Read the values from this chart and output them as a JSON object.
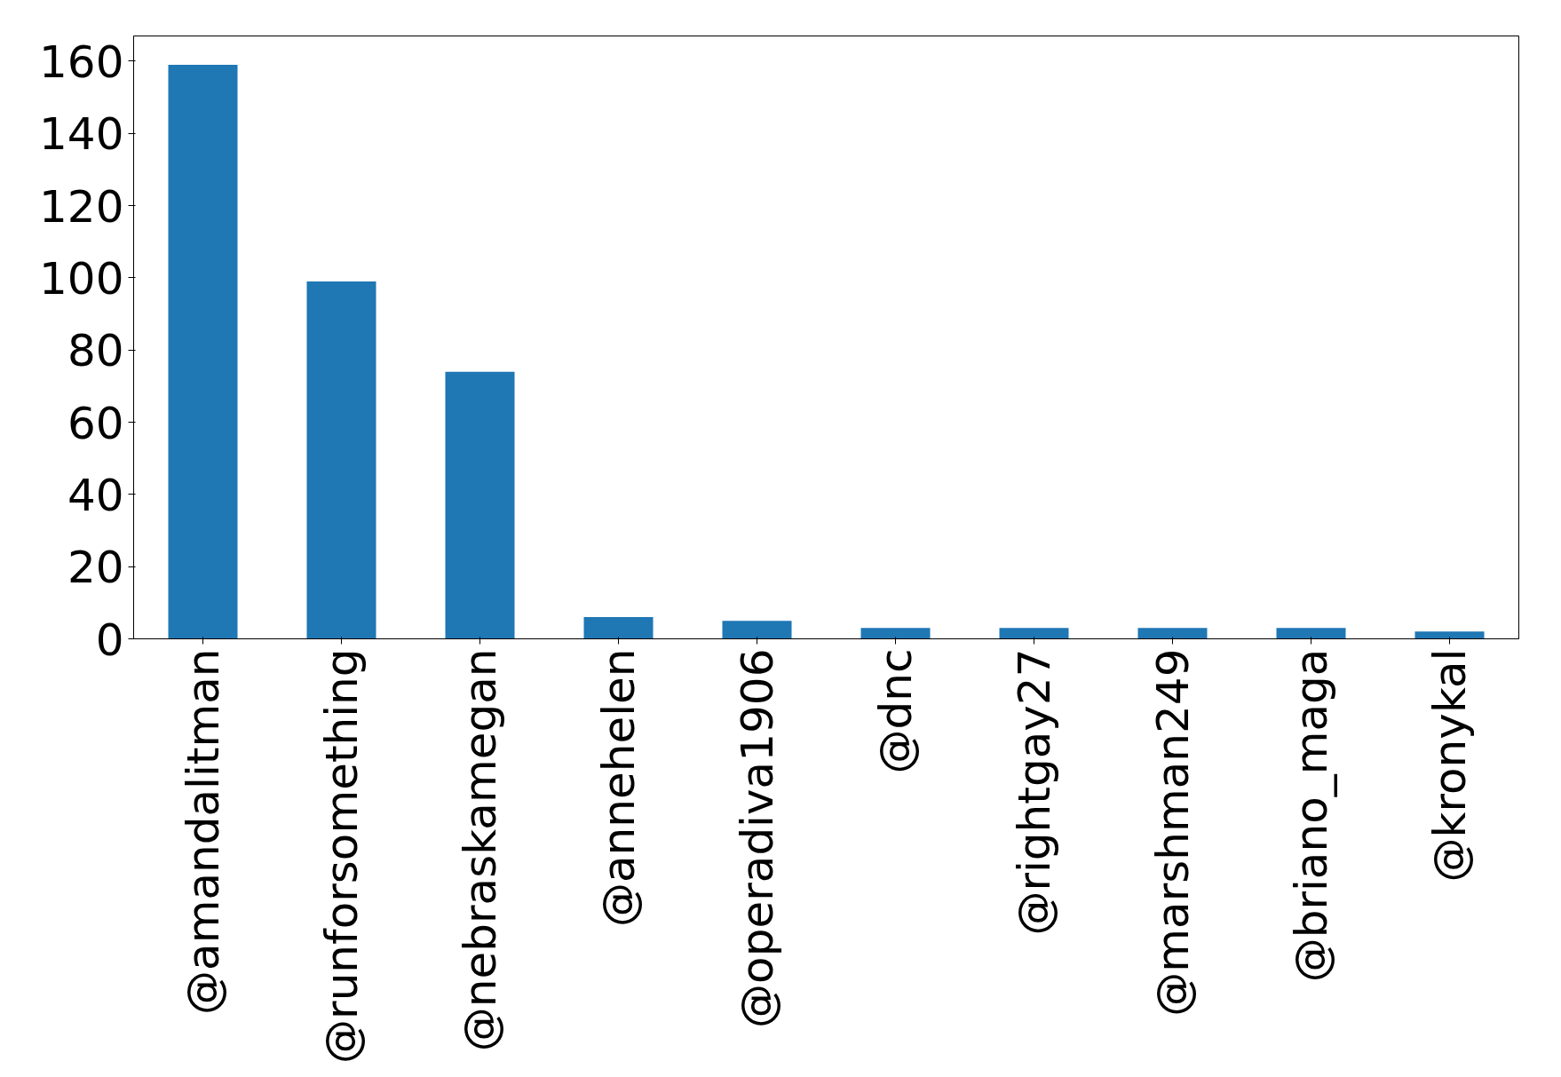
{
  "chart_data": {
    "type": "bar",
    "categories": [
      "@amandalitman",
      "@runforsomething",
      "@nebraskamegan",
      "@annehelen",
      "@operadiva1906",
      "@dnc",
      "@rightgay27",
      "@marshman249",
      "@briano_maga",
      "@kronykal"
    ],
    "values": [
      159,
      99,
      74,
      6,
      5,
      3,
      3,
      3,
      3,
      2
    ],
    "color": "#1f77b4",
    "ylim": [
      0,
      167
    ],
    "yticks": [
      0,
      20,
      40,
      60,
      80,
      100,
      120,
      140,
      160
    ],
    "grid": false
  }
}
